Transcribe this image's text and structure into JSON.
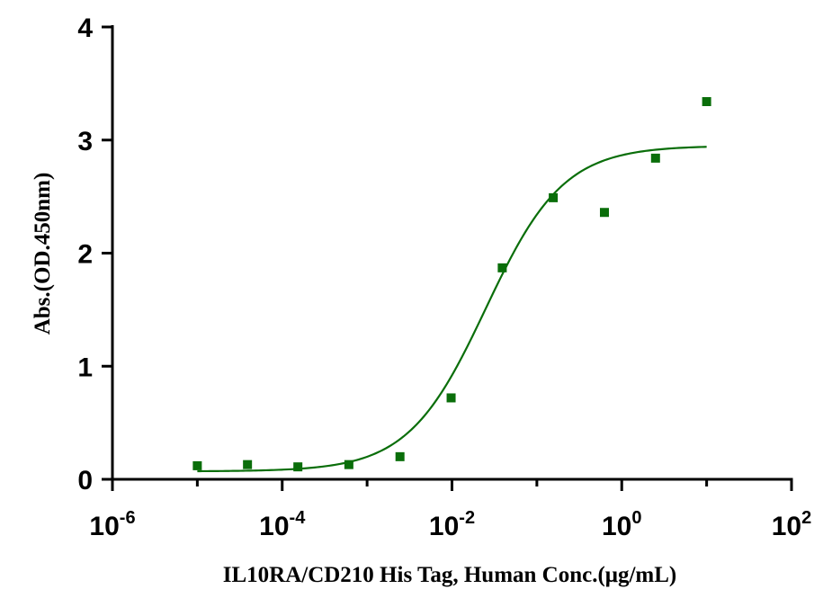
{
  "chart_data": {
    "type": "scatter",
    "xlabel": "IL10RA/CD210 His Tag, Human Conc.(μg/mL)",
    "ylabel": "Abs.(OD.450nm)",
    "x_scale": "log10",
    "xlim": [
      1e-06,
      100
    ],
    "ylim": [
      0,
      4
    ],
    "y_ticks": [
      "0",
      "1",
      "2",
      "3",
      "4"
    ],
    "x_ticks": [
      {
        "base": "10",
        "exp": "-6"
      },
      {
        "base": "10",
        "exp": "-4"
      },
      {
        "base": "10",
        "exp": "-2"
      },
      {
        "base": "10",
        "exp": "0"
      },
      {
        "base": "10",
        "exp": "2"
      }
    ],
    "grid": false,
    "series": [
      {
        "marker": "square",
        "color": "#0a6e0a",
        "x": [
          1e-05,
          3.9e-05,
          0.000153,
          0.00061,
          0.00244,
          0.00977,
          0.0391,
          0.156,
          0.625,
          2.5,
          10
        ],
        "y": [
          0.12,
          0.13,
          0.11,
          0.13,
          0.2,
          0.72,
          1.87,
          2.49,
          2.36,
          2.84,
          3.34
        ]
      }
    ],
    "fit_curve": {
      "model": "4PL",
      "color": "#0a6e0a",
      "bottom": 0.07,
      "top": 2.95,
      "ec50": 0.025,
      "hill": 0.95,
      "x_range": [
        1e-05,
        10
      ]
    }
  }
}
